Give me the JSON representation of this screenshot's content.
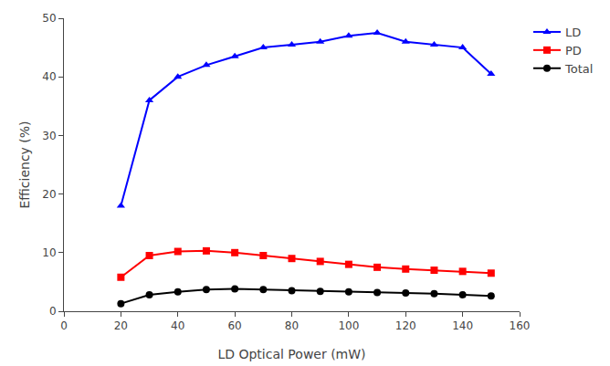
{
  "chart_data": {
    "type": "line",
    "xlabel": "LD Optical Power (mW)",
    "ylabel": "Efficiency (%)",
    "x": [
      20,
      30,
      40,
      50,
      60,
      70,
      80,
      90,
      100,
      110,
      120,
      130,
      140,
      150
    ],
    "series": [
      {
        "name": "LD",
        "color": "#0000FF",
        "marker": "triangle-up",
        "values": [
          18,
          36,
          40,
          42,
          43.5,
          45,
          45.5,
          46,
          47,
          47.5,
          46,
          45.5,
          45,
          40.5
        ]
      },
      {
        "name": "PD",
        "color": "#FF0000",
        "marker": "square",
        "values": [
          5.8,
          9.5,
          10.2,
          10.3,
          10.0,
          9.5,
          9.0,
          8.5,
          8.0,
          7.5,
          7.2,
          7.0,
          6.8,
          6.5
        ]
      },
      {
        "name": "Total",
        "color": "#000000",
        "marker": "circle",
        "values": [
          1.3,
          2.8,
          3.3,
          3.7,
          3.8,
          3.7,
          3.5,
          3.4,
          3.3,
          3.2,
          3.1,
          3.0,
          2.8,
          2.6
        ]
      }
    ],
    "xlim": [
      0,
      160
    ],
    "ylim": [
      0,
      50
    ],
    "xticks": [
      0,
      20,
      40,
      60,
      80,
      100,
      120,
      140,
      160
    ],
    "yticks": [
      0,
      10,
      20,
      30,
      40,
      50
    ],
    "grid": false,
    "legend": "upper right"
  }
}
